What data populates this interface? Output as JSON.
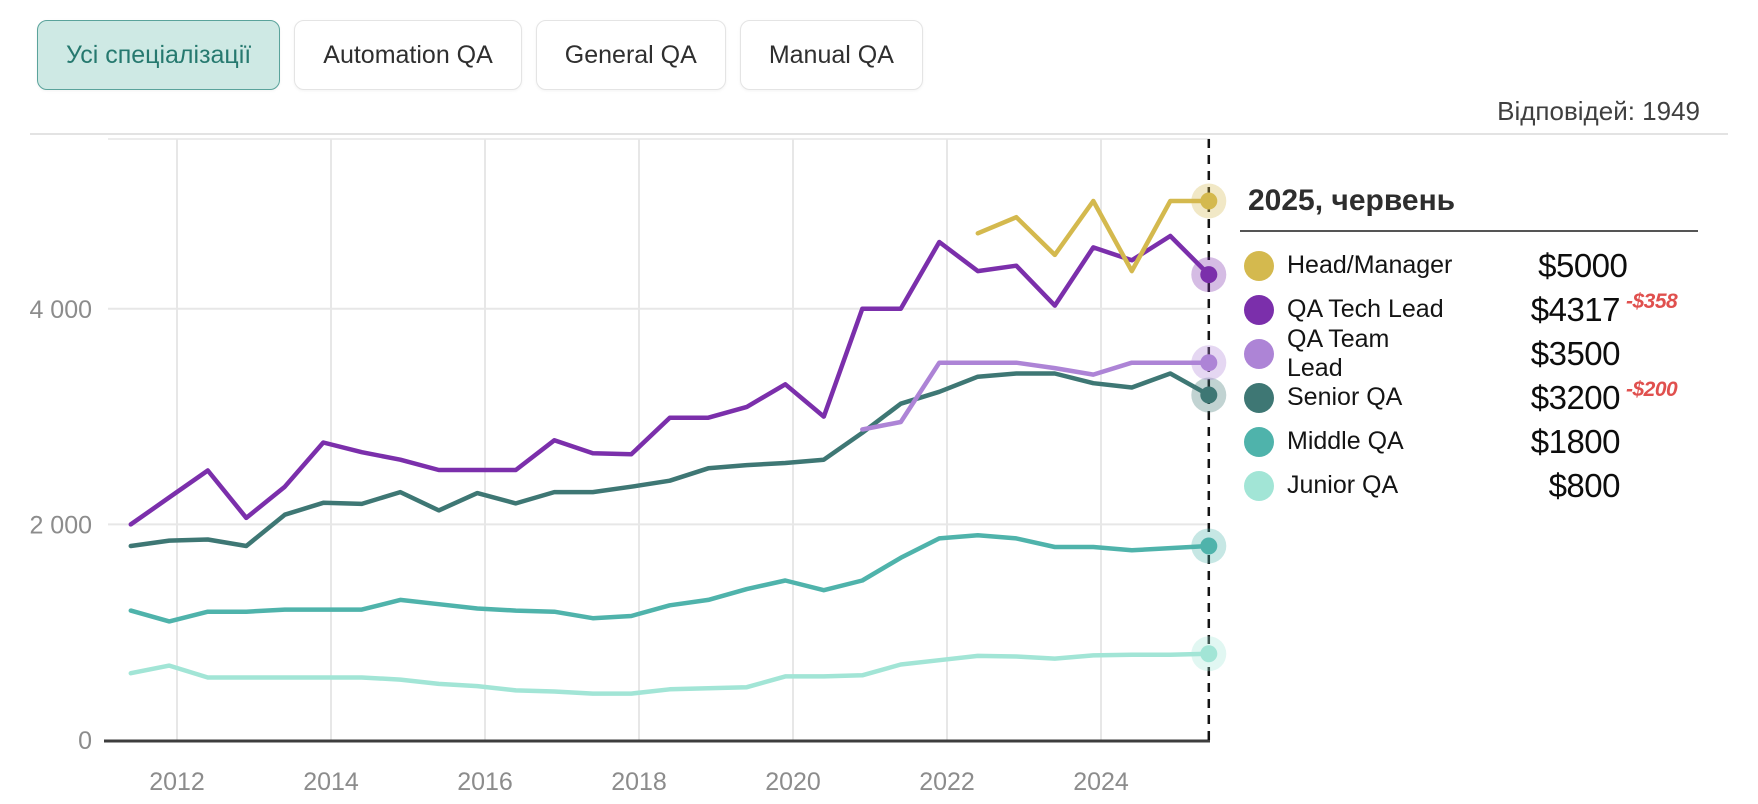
{
  "tabs": {
    "items": [
      {
        "label": "Усі спеціалізації",
        "active": true
      },
      {
        "label": "Automation QA",
        "active": false
      },
      {
        "label": "General QA",
        "active": false
      },
      {
        "label": "Manual QA",
        "active": false
      }
    ]
  },
  "header": {
    "responses_label": "Відповідей: 1949"
  },
  "legend": {
    "title": "2025, червень",
    "items": [
      {
        "name": "Head/Manager",
        "value": "$5000",
        "delta": "",
        "color": "#d4b94e"
      },
      {
        "name": "QA Tech Lead",
        "value": "$4317",
        "delta": "-$358",
        "color": "#7b2fab"
      },
      {
        "name": "QA Team Lead",
        "value": "$3500",
        "delta": "",
        "color": "#ad84d6"
      },
      {
        "name": "Senior QA",
        "value": "$3200",
        "delta": "-$200",
        "color": "#3e7774"
      },
      {
        "name": "Middle QA",
        "value": "$1800",
        "delta": "",
        "color": "#4fb3ab"
      },
      {
        "name": "Junior QA",
        "value": "$800",
        "delta": "",
        "color": "#a2e5d6"
      }
    ]
  },
  "chart_data": {
    "type": "line",
    "title": "",
    "xlabel": "",
    "ylabel": "",
    "current_period_label": "2025, червень",
    "grid": true,
    "legend_position": "right",
    "x_ticks": [
      "2012",
      "2014",
      "2016",
      "2018",
      "2020",
      "2022",
      "2024"
    ],
    "y_ticks": [
      0,
      2000,
      4000
    ],
    "y_tick_labels": [
      "0",
      "2 000",
      "4 000"
    ],
    "ylim": [
      0,
      5600
    ],
    "xlim_years": [
      2011.2,
      2025.6
    ],
    "survey_years": [
      2011.4,
      2011.9,
      2012.4,
      2012.9,
      2013.4,
      2013.9,
      2014.4,
      2014.9,
      2015.4,
      2015.9,
      2016.4,
      2016.9,
      2017.4,
      2017.9,
      2018.4,
      2018.9,
      2019.4,
      2019.9,
      2020.4,
      2020.9,
      2021.4,
      2021.9,
      2022.4,
      2022.9,
      2023.4,
      2023.9,
      2024.4,
      2024.9,
      2025.4
    ],
    "series": [
      {
        "name": "Head/Manager",
        "color": "#d4b94e",
        "start_index": 22,
        "values": [
          4700,
          4850,
          4500,
          5000,
          4350,
          5000,
          5000
        ]
      },
      {
        "name": "QA Tech Lead",
        "color": "#7b2fab",
        "start_index": 0,
        "values": [
          2000,
          2250,
          2500,
          2060,
          2350,
          2760,
          2670,
          2600,
          2505,
          2505,
          2505,
          2780,
          2660,
          2650,
          2990,
          2990,
          3090,
          3300,
          3000,
          4000,
          4000,
          4620,
          4350,
          4400,
          4030,
          4570,
          4450,
          4675,
          4317
        ]
      },
      {
        "name": "QA Team Lead",
        "color": "#ad84d6",
        "start_index": 19,
        "values": [
          2880,
          2950,
          3500,
          3500,
          3500,
          3450,
          3390,
          3500,
          3500,
          3500
        ]
      },
      {
        "name": "Senior QA",
        "color": "#3e7774",
        "start_index": 0,
        "values": [
          1800,
          1850,
          1860,
          1800,
          2090,
          2200,
          2190,
          2300,
          2130,
          2290,
          2195,
          2300,
          2300,
          2350,
          2405,
          2520,
          2550,
          2570,
          2600,
          2850,
          3120,
          3230,
          3370,
          3400,
          3400,
          3310,
          3270,
          3400,
          3200
        ]
      },
      {
        "name": "Middle QA",
        "color": "#4fb3ab",
        "start_index": 0,
        "values": [
          1200,
          1100,
          1190,
          1190,
          1210,
          1210,
          1210,
          1300,
          1260,
          1220,
          1200,
          1190,
          1130,
          1150,
          1250,
          1300,
          1400,
          1480,
          1390,
          1480,
          1690,
          1870,
          1900,
          1870,
          1790,
          1790,
          1760,
          1780,
          1800
        ]
      },
      {
        "name": "Junior QA",
        "color": "#a2e5d6",
        "start_index": 0,
        "values": [
          620,
          690,
          580,
          580,
          580,
          580,
          580,
          560,
          520,
          500,
          460,
          450,
          430,
          430,
          470,
          480,
          490,
          590,
          590,
          600,
          700,
          740,
          780,
          775,
          755,
          785,
          790,
          790,
          800
        ]
      }
    ]
  }
}
